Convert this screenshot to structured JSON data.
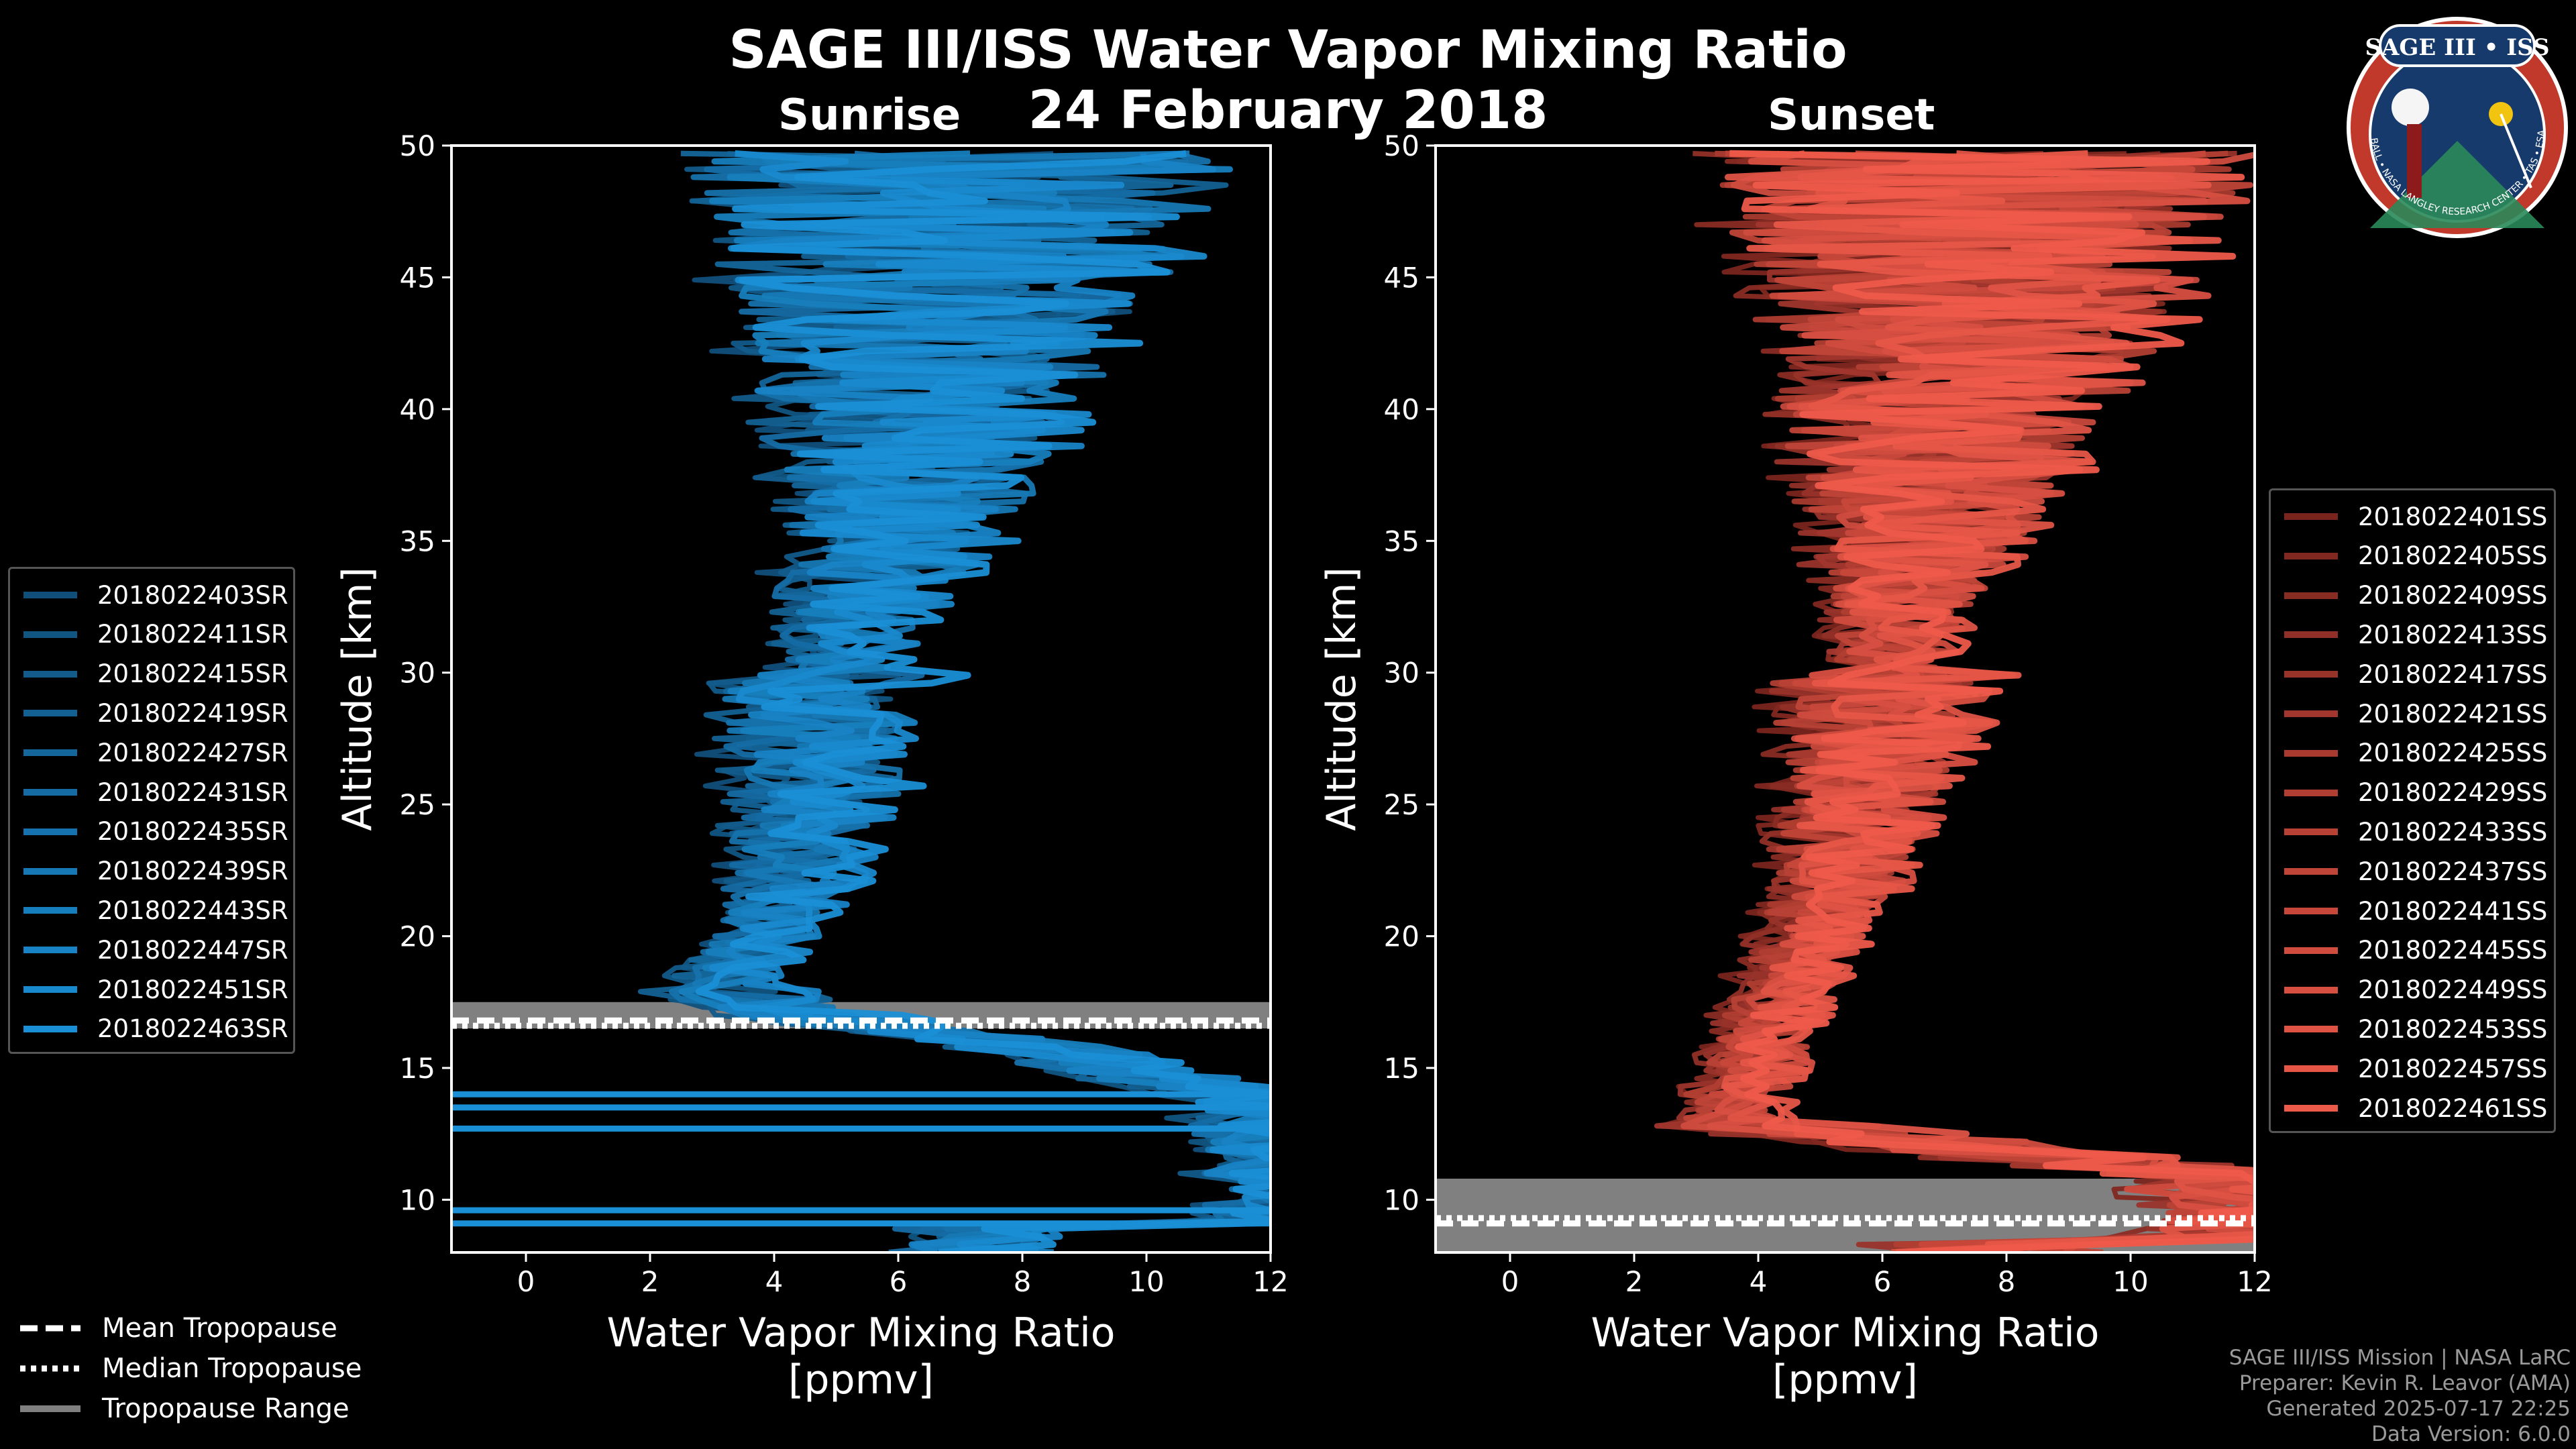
{
  "header": {
    "title": "SAGE III/ISS Water Vapor Mixing Ratio",
    "date": "24 February 2018",
    "left_panel_title": "Sunrise",
    "right_panel_title": "Sunset"
  },
  "badge": {
    "top_text": "SAGE III • ISS",
    "ring_text": "BALL • NASA LANGLEY RESEARCH CENTER • TAS • ESA"
  },
  "credits": {
    "line1": "SAGE III/ISS Mission | NASA LaRC",
    "line2": "Preparer: Kevin R. Leavor (AMA)",
    "line3": "Generated 2025-07-17 22:25",
    "line4": "Data Version: 6.0.0"
  },
  "tropopause_legend": {
    "mean": "Mean Tropopause",
    "median": "Median Tropopause",
    "range": "Tropopause Range"
  },
  "colors": {
    "sunrise": "#1a8fd6",
    "sunset": "#ee5a4a",
    "range_fill": "#808080",
    "axes": "#ffffff"
  },
  "chart_data": [
    {
      "type": "line",
      "panel": "Sunrise",
      "xlabel": "Water Vapor Mixing Ratio",
      "xlabel2": "[ppmv]",
      "ylabel": "Altitude [km]",
      "xlim": [
        -1.2,
        12
      ],
      "ylim": [
        8,
        50
      ],
      "xticks": [
        0,
        2,
        4,
        6,
        8,
        10,
        12
      ],
      "yticks": [
        10,
        15,
        20,
        25,
        30,
        35,
        40,
        45,
        50
      ],
      "tropopause": {
        "mean": 16.8,
        "median": 16.6,
        "range": [
          16.5,
          17.5
        ]
      },
      "series": [
        {
          "name": "2018022403SR"
        },
        {
          "name": "2018022411SR"
        },
        {
          "name": "2018022415SR"
        },
        {
          "name": "2018022419SR"
        },
        {
          "name": "2018022427SR"
        },
        {
          "name": "2018022431SR"
        },
        {
          "name": "2018022435SR"
        },
        {
          "name": "2018022439SR"
        },
        {
          "name": "2018022443SR"
        },
        {
          "name": "2018022447SR"
        },
        {
          "name": "2018022451SR"
        },
        {
          "name": "2018022463SR"
        }
      ],
      "median_profile": {
        "alt": [
          9,
          13,
          14,
          15,
          16,
          17,
          18,
          19,
          20,
          22,
          25,
          28,
          30,
          33,
          35,
          38,
          40,
          43,
          45,
          48,
          50
        ],
        "vmr": [
          12,
          12,
          11.5,
          9.5,
          7.5,
          4.5,
          3.2,
          3.3,
          3.8,
          4.2,
          4.6,
          4.7,
          5.0,
          5.4,
          5.9,
          6.2,
          6.3,
          6.6,
          6.8,
          7.0,
          7.2
        ]
      }
    },
    {
      "type": "line",
      "panel": "Sunset",
      "xlabel": "Water Vapor Mixing Ratio",
      "xlabel2": "[ppmv]",
      "ylabel": "Altitude [km]",
      "xlim": [
        -1.2,
        12
      ],
      "ylim": [
        8,
        50
      ],
      "xticks": [
        0,
        2,
        4,
        6,
        8,
        10,
        12
      ],
      "yticks": [
        10,
        15,
        20,
        25,
        30,
        35,
        40,
        45,
        50
      ],
      "tropopause": {
        "mean": 9.1,
        "median": 9.3,
        "range": [
          8.0,
          10.8
        ]
      },
      "series": [
        {
          "name": "2018022401SS"
        },
        {
          "name": "2018022405SS"
        },
        {
          "name": "2018022409SS"
        },
        {
          "name": "2018022413SS"
        },
        {
          "name": "2018022417SS"
        },
        {
          "name": "2018022421SS"
        },
        {
          "name": "2018022425SS"
        },
        {
          "name": "2018022429SS"
        },
        {
          "name": "2018022433SS"
        },
        {
          "name": "2018022437SS"
        },
        {
          "name": "2018022441SS"
        },
        {
          "name": "2018022445SS"
        },
        {
          "name": "2018022449SS"
        },
        {
          "name": "2018022453SS"
        },
        {
          "name": "2018022457SS"
        },
        {
          "name": "2018022461SS"
        }
      ],
      "median_profile": {
        "alt": [
          8.5,
          10,
          11,
          12,
          13,
          14,
          15,
          17,
          20,
          22,
          25,
          28,
          30,
          33,
          35,
          38,
          40,
          43,
          45,
          48,
          50
        ],
        "vmr": [
          12,
          12,
          11,
          7,
          3.5,
          3.6,
          3.9,
          4.2,
          4.8,
          5.3,
          5.6,
          5.9,
          6.1,
          6.3,
          6.5,
          6.8,
          7.0,
          7.3,
          7.5,
          7.4,
          7.6
        ]
      }
    }
  ]
}
